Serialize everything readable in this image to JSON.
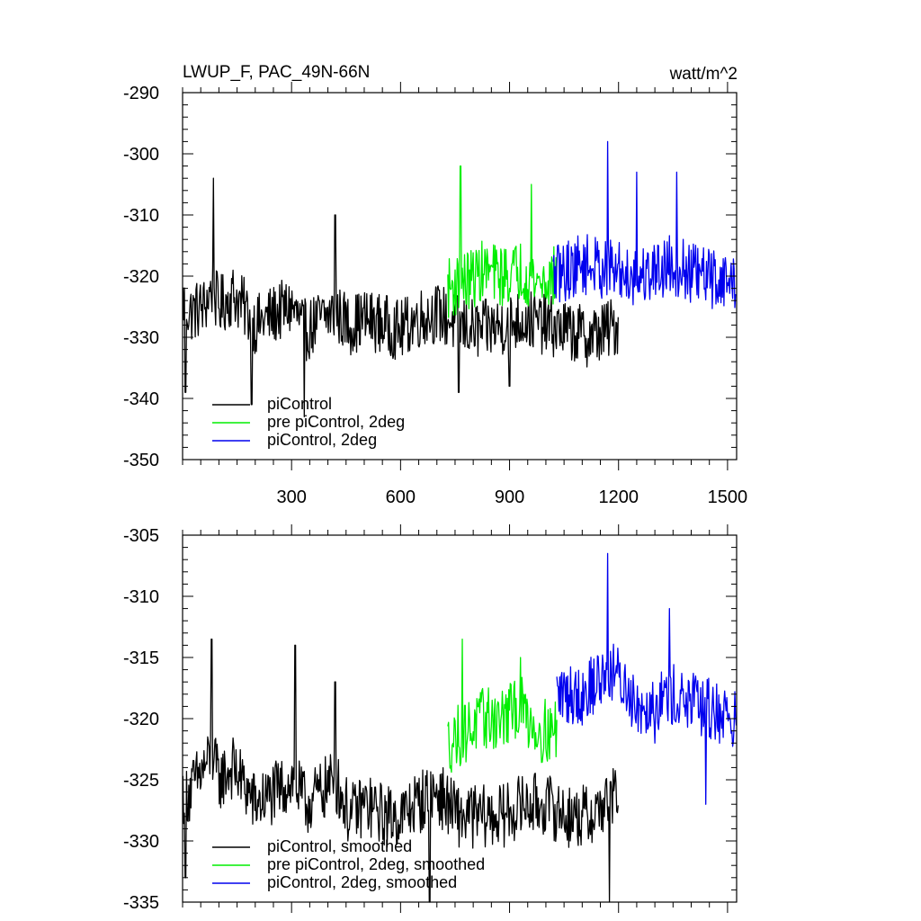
{
  "chart_data": [
    {
      "type": "line",
      "title": "LWUP_F, PAC_49N-66N",
      "units": "watt/m^2",
      "xlim": [
        0,
        1525
      ],
      "ylim": [
        -350,
        -290
      ],
      "xticks": [
        300,
        600,
        900,
        1200,
        1500
      ],
      "yticks": [
        -290,
        -300,
        -310,
        -320,
        -330,
        -340,
        -350
      ],
      "series": [
        {
          "name": "piControl",
          "color": "#000000",
          "x_start": 1,
          "x_end": 1200,
          "anchors_x": [
            1,
            20,
            60,
            80,
            100,
            140,
            180,
            200,
            260,
            300,
            340,
            380,
            420,
            460,
            500,
            560,
            600,
            640,
            700,
            760,
            820,
            880,
            940,
            1000,
            1060,
            1120,
            1200
          ],
          "anchors_y": [
            -324,
            -326,
            -325,
            -322,
            -325,
            -323,
            -326,
            -328,
            -326,
            -325,
            -329,
            -327,
            -326,
            -328,
            -327,
            -328,
            -329,
            -327,
            -326,
            -328,
            -329,
            -328,
            -327,
            -328,
            -329,
            -330,
            -328
          ],
          "noise": 5.0,
          "spikes": [
            [
              8,
              -339
            ],
            [
              85,
              -304
            ],
            [
              190,
              -341
            ],
            [
              335,
              -343
            ],
            [
              420,
              -310
            ],
            [
              760,
              -339
            ],
            [
              900,
              -338
            ]
          ]
        },
        {
          "name": "pre piControl, 2deg",
          "color": "#00ee00",
          "x_start": 730,
          "x_end": 1030,
          "anchors_x": [
            730,
            780,
            830,
            880,
            930,
            980,
            1030
          ],
          "anchors_y": [
            -322,
            -321,
            -319,
            -320,
            -319,
            -321,
            -320
          ],
          "noise": 5.0,
          "spikes": [
            [
              765,
              -302
            ],
            [
              960,
              -305
            ]
          ]
        },
        {
          "name": "piControl, 2deg",
          "color": "#0000ee",
          "x_start": 1020,
          "x_end": 1525,
          "anchors_x": [
            1020,
            1100,
            1180,
            1260,
            1340,
            1420,
            1525
          ],
          "anchors_y": [
            -320,
            -318,
            -319,
            -320,
            -318,
            -320,
            -321
          ],
          "noise": 5.0,
          "spikes": [
            [
              1170,
              -298
            ],
            [
              1250,
              -303
            ],
            [
              1360,
              -303
            ]
          ]
        }
      ],
      "legend": [
        "piControl",
        "pre piControl, 2deg",
        "piControl, 2deg"
      ],
      "legend_position": "bottom-left"
    },
    {
      "type": "line",
      "title": "",
      "xlim": [
        0,
        1525
      ],
      "ylim": [
        -335,
        -305
      ],
      "xticks": [
        300,
        600,
        900,
        1200,
        1500
      ],
      "yticks": [
        -305,
        -310,
        -315,
        -320,
        -325,
        -330,
        -335
      ],
      "series": [
        {
          "name": "piControl, smoothed",
          "color": "#000000",
          "x_start": 1,
          "x_end": 1200,
          "anchors_x": [
            1,
            20,
            60,
            80,
            100,
            140,
            180,
            200,
            260,
            300,
            340,
            380,
            420,
            460,
            500,
            560,
            600,
            640,
            700,
            760,
            820,
            880,
            940,
            1000,
            1060,
            1120,
            1200
          ],
          "anchors_y": [
            -326,
            -326,
            -324,
            -323,
            -325,
            -324,
            -326,
            -327,
            -326,
            -325,
            -327,
            -326,
            -325,
            -328,
            -327,
            -328,
            -328,
            -327,
            -326,
            -328,
            -328,
            -328,
            -327,
            -327,
            -328,
            -328,
            -326
          ],
          "noise": 2.6,
          "spikes": [
            [
              8,
              -333
            ],
            [
              80,
              -313.5
            ],
            [
              310,
              -314
            ],
            [
              420,
              -317
            ],
            [
              680,
              -335
            ],
            [
              1175,
              -335
            ]
          ]
        },
        {
          "name": "pre piControl, 2deg, smoothed",
          "color": "#00ee00",
          "x_start": 730,
          "x_end": 1030,
          "anchors_x": [
            730,
            780,
            830,
            880,
            930,
            980,
            1030
          ],
          "anchors_y": [
            -322,
            -321,
            -320,
            -320,
            -319,
            -321,
            -321
          ],
          "noise": 2.6,
          "spikes": [
            [
              770,
              -313.5
            ],
            [
              930,
              -315
            ]
          ]
        },
        {
          "name": "piControl, 2deg, smoothed",
          "color": "#0000ee",
          "x_start": 1030,
          "x_end": 1525,
          "anchors_x": [
            1030,
            1100,
            1180,
            1260,
            1340,
            1420,
            1525
          ],
          "anchors_y": [
            -318,
            -318,
            -316,
            -319,
            -318,
            -319,
            -320
          ],
          "noise": 2.6,
          "spikes": [
            [
              1170,
              -306.5
            ],
            [
              1300,
              -322
            ],
            [
              1340,
              -311
            ],
            [
              1440,
              -327
            ]
          ]
        }
      ],
      "legend": [
        "piControl, smoothed",
        "pre piControl, 2deg, smoothed",
        "piControl, 2deg, smoothed"
      ],
      "legend_position": "bottom-left"
    }
  ]
}
